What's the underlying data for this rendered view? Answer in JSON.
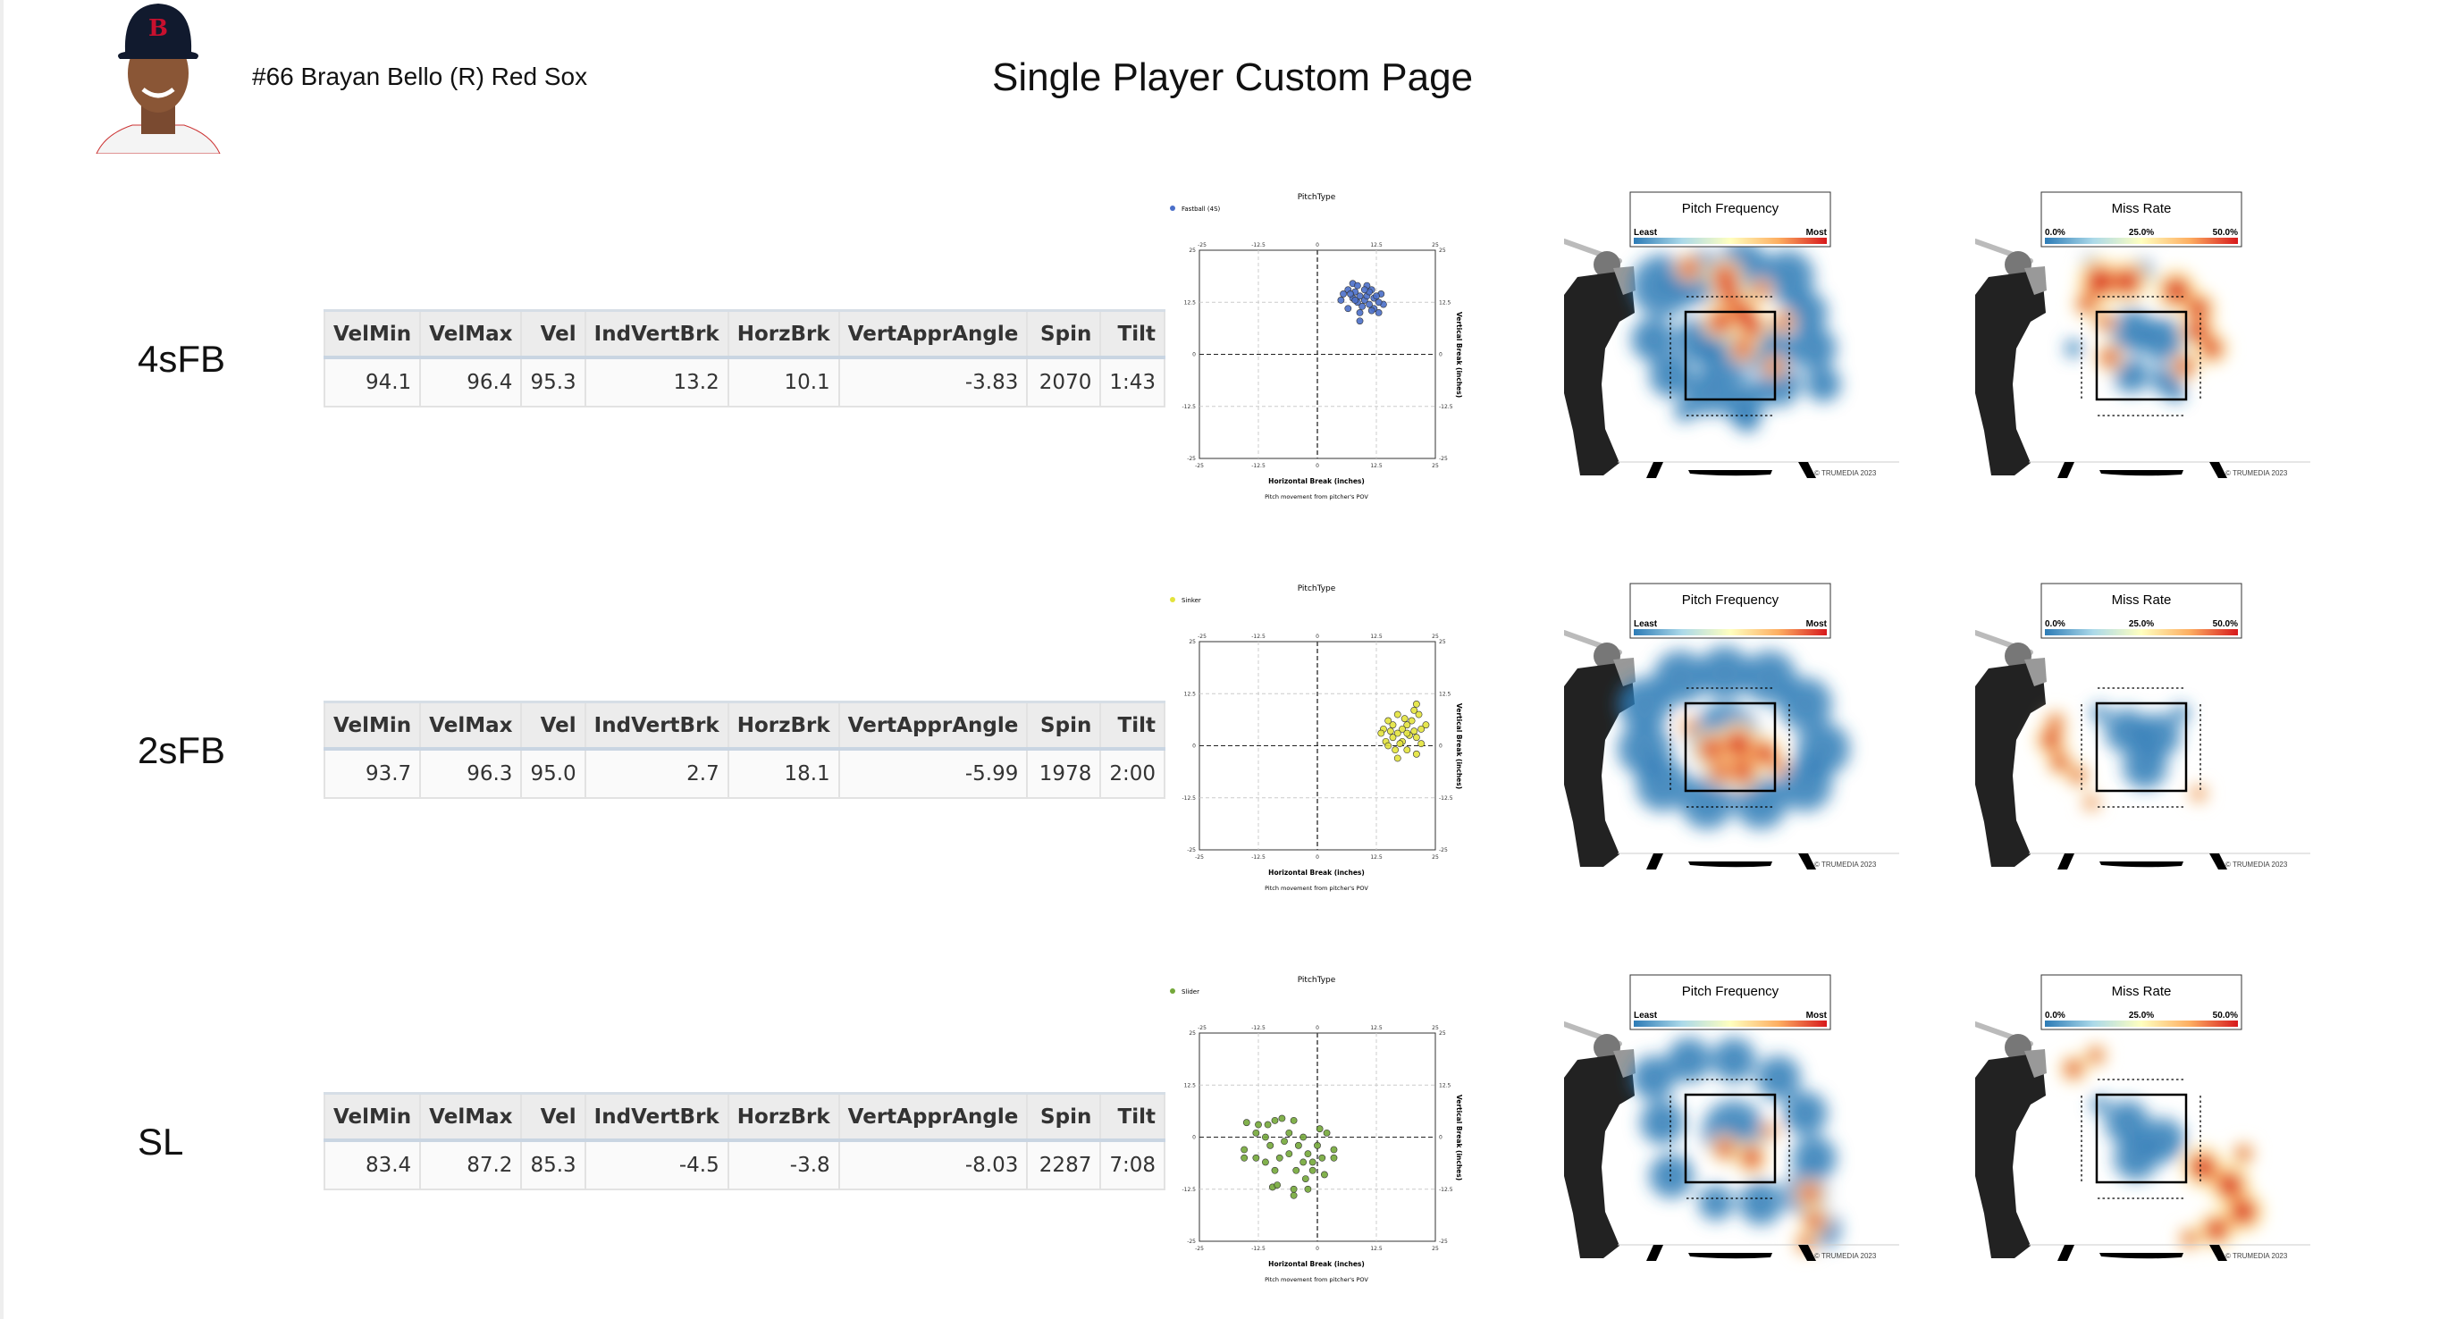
{
  "header": {
    "player": "#66 Brayan Bello (R) Red Sox",
    "title": "Single Player Custom Page",
    "logo_letter": "B"
  },
  "table_columns": [
    "VelMin",
    "VelMax",
    "Vel",
    "IndVertBrk",
    "HorzBrk",
    "VertApprAngle",
    "Spin",
    "Tilt"
  ],
  "rows": [
    {
      "label": "4sFB",
      "values": [
        "94.1",
        "96.4",
        "95.3",
        "13.2",
        "10.1",
        "-3.83",
        "2070",
        "1:43"
      ]
    },
    {
      "label": "2sFB",
      "values": [
        "93.7",
        "96.3",
        "95.0",
        "2.7",
        "18.1",
        "-5.99",
        "1978",
        "2:00"
      ]
    },
    {
      "label": "SL",
      "values": [
        "83.4",
        "87.2",
        "85.3",
        "-4.5",
        "-3.8",
        "-8.03",
        "2287",
        "7:08"
      ]
    }
  ],
  "heatmaps": {
    "frequency": {
      "title": "Pitch Frequency",
      "low": "Least",
      "high": "Most"
    },
    "miss_rate": {
      "title": "Miss Rate",
      "low": "0.0%",
      "mid": "25.0%",
      "high": "50.0%"
    },
    "copyright": "© TRUMEDIA 2023",
    "colors": [
      "#2c7bb6",
      "#abd9e9",
      "#ffffbf",
      "#fdae61",
      "#d7191c"
    ]
  },
  "chart_data": [
    {
      "type": "scatter",
      "title": "PitchType",
      "xlabel": "Horizontal Break (inches)",
      "ylabel": "Vertical Break (inches)",
      "subtitle": "Pitch movement from pitcher's POV",
      "xlim": [
        -25,
        25
      ],
      "ylim": [
        -25,
        25
      ],
      "ticks": [
        "-25",
        "-12.5",
        "0",
        "12.5",
        "25"
      ],
      "grid": true,
      "legend": "top-left",
      "series": [
        {
          "name": "Fastball (4S)",
          "color": "#4a6fc9",
          "points": [
            [
              7.5,
              17
            ],
            [
              8.5,
              16.5
            ],
            [
              10.5,
              16.5
            ],
            [
              11.5,
              15.5
            ],
            [
              6.5,
              15.5
            ],
            [
              5.5,
              14.5
            ],
            [
              5,
              13
            ],
            [
              6.5,
              11
            ],
            [
              9,
              8
            ],
            [
              13.5,
              14.5
            ],
            [
              14,
              12
            ],
            [
              13,
              10
            ],
            [
              12,
              11
            ],
            [
              11,
              12
            ],
            [
              10,
              13
            ],
            [
              9,
              14
            ],
            [
              8,
              15
            ],
            [
              7.5,
              13.5
            ],
            [
              9.5,
              11.5
            ],
            [
              10.5,
              14
            ],
            [
              12,
              13.5
            ],
            [
              11,
              15
            ],
            [
              8.5,
              12.5
            ],
            [
              13,
              12.5
            ],
            [
              9,
              10
            ],
            [
              11.5,
              10.5
            ],
            [
              7,
              14.5
            ],
            [
              10,
              15.5
            ],
            [
              12.5,
              14
            ],
            [
              8,
              13
            ]
          ]
        }
      ]
    },
    {
      "type": "scatter",
      "title": "PitchType",
      "xlabel": "Horizontal Break (inches)",
      "ylabel": "Vertical Break (inches)",
      "subtitle": "Pitch movement from pitcher's POV",
      "xlim": [
        -25,
        25
      ],
      "ylim": [
        -25,
        25
      ],
      "ticks": [
        "-25",
        "-12.5",
        "0",
        "12.5",
        "25"
      ],
      "grid": true,
      "legend": "top-left",
      "series": [
        {
          "name": "Sinker",
          "color": "#e3e33c",
          "points": [
            [
              21,
              10
            ],
            [
              20.5,
              8.5
            ],
            [
              21.5,
              7.5
            ],
            [
              17,
              7.5
            ],
            [
              15,
              6
            ],
            [
              14,
              4
            ],
            [
              13.5,
              3
            ],
            [
              14.5,
              1
            ],
            [
              15,
              0
            ],
            [
              16.5,
              -1
            ],
            [
              17,
              -3
            ],
            [
              19,
              -1
            ],
            [
              21,
              -2
            ],
            [
              22,
              0.5
            ],
            [
              23,
              5
            ],
            [
              22,
              4
            ],
            [
              20,
              6
            ],
            [
              19,
              5
            ],
            [
              18,
              4
            ],
            [
              17,
              3
            ],
            [
              16,
              2
            ],
            [
              18,
              1
            ],
            [
              19.5,
              2.5
            ],
            [
              20.5,
              3.5
            ],
            [
              16,
              5
            ],
            [
              18.5,
              6.5
            ],
            [
              15.5,
              3.5
            ],
            [
              17.5,
              0.5
            ],
            [
              21,
              2
            ],
            [
              19,
              3
            ]
          ]
        }
      ]
    },
    {
      "type": "scatter",
      "title": "PitchType",
      "xlabel": "Horizontal Break (inches)",
      "ylabel": "Vertical Break (inches)",
      "subtitle": "Pitch movement from pitcher's POV",
      "xlim": [
        -25,
        25
      ],
      "ylim": [
        -25,
        25
      ],
      "ticks": [
        "-25",
        "-12.5",
        "0",
        "12.5",
        "25"
      ],
      "grid": true,
      "legend": "top-left",
      "series": [
        {
          "name": "Slider",
          "color": "#74a83a",
          "points": [
            [
              -15,
              3.5
            ],
            [
              -12.5,
              3
            ],
            [
              -10.5,
              3
            ],
            [
              -9,
              4
            ],
            [
              -7.5,
              4.5
            ],
            [
              -5,
              4
            ],
            [
              -13,
              1
            ],
            [
              -11,
              0
            ],
            [
              -15.5,
              -3
            ],
            [
              -15.5,
              -5
            ],
            [
              -13,
              -5
            ],
            [
              -11,
              -6
            ],
            [
              -9.5,
              -12
            ],
            [
              -8.5,
              -11.5
            ],
            [
              -9,
              -8
            ],
            [
              -5,
              -12.5
            ],
            [
              -5,
              -14
            ],
            [
              -2,
              -12.5
            ],
            [
              0.5,
              2
            ],
            [
              2,
              1
            ],
            [
              3.5,
              -3
            ],
            [
              3.5,
              -5
            ],
            [
              1.5,
              -9
            ],
            [
              -1,
              -8
            ],
            [
              -3,
              -6
            ],
            [
              -2,
              -4
            ],
            [
              -4,
              -2
            ],
            [
              -6,
              -4
            ],
            [
              -7,
              -1
            ],
            [
              -8,
              -5
            ],
            [
              -4.5,
              -8
            ],
            [
              -1,
              -6
            ],
            [
              0,
              -2
            ],
            [
              -6,
              1
            ],
            [
              -3,
              0
            ],
            [
              1,
              -5
            ],
            [
              -10,
              -2
            ],
            [
              -2.5,
              -10
            ]
          ]
        }
      ]
    }
  ]
}
